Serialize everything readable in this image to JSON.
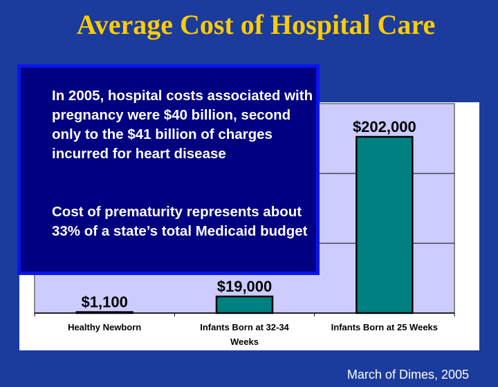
{
  "slide": {
    "title": "Average Cost of Hospital Care",
    "callout": {
      "paragraph1": "In 2005, hospital costs associated with pregnancy were $40 billion, second only to the $41 billion of charges incurred for heart disease",
      "paragraph2": "Cost of prematurity represents about 33% of a state’s total Medicaid budget"
    },
    "source": "March of Dimes, 2005"
  },
  "chart_data": {
    "type": "bar",
    "title": "Average Cost of Hospital Care",
    "categories": [
      "Healthy Newborn",
      "Infants Born at 32-34 Weeks",
      "Infants Born at 25 Weeks"
    ],
    "category_lines": [
      [
        "Healthy Newborn"
      ],
      [
        "Infants Born at 32-34",
        "Weeks"
      ],
      [
        "Infants Born at 25 Weeks"
      ]
    ],
    "values": [
      1100,
      19000,
      202000
    ],
    "data_labels": [
      "$1,100",
      "$19,000",
      "$202,000"
    ],
    "ylim": [
      0,
      240000
    ],
    "gridlines": [
      80000,
      160000
    ],
    "grid": true,
    "xlabel": "",
    "ylabel": "",
    "colors": {
      "bar": "#008080",
      "plot_bg": "#ccccff"
    }
  }
}
